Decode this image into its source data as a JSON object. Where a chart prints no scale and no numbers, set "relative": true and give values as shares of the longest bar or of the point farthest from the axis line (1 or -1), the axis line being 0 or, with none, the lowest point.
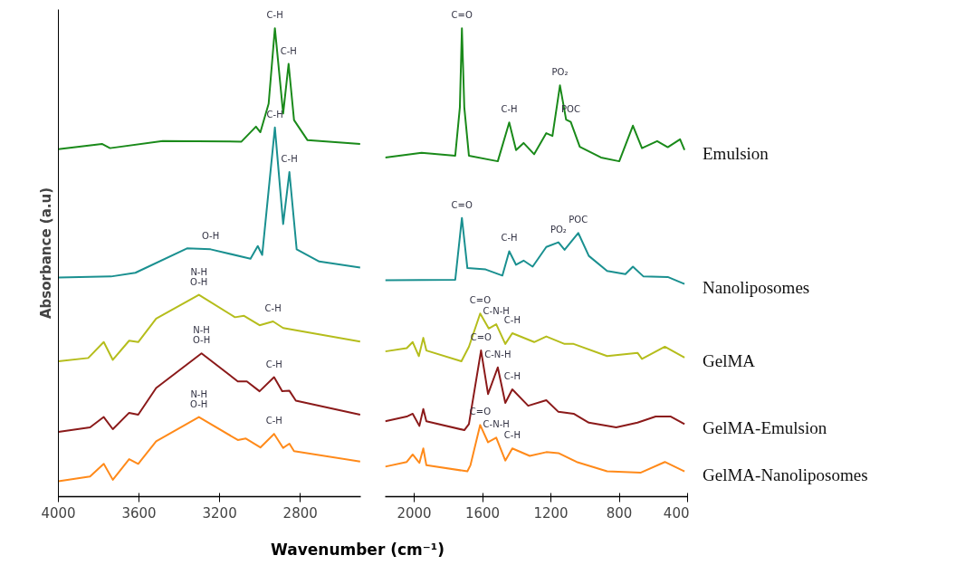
{
  "chart_data": [
    {
      "type": "line",
      "relative": true,
      "ylabel": "Absorbance (a.u)",
      "xlim": [
        4000,
        2500
      ],
      "xticks": [
        4000,
        3600,
        3200,
        2800
      ],
      "series": [
        {
          "color": "#1a8a1a",
          "x": [
            4000,
            3784,
            3744,
            3483,
            3092,
            3020,
            2998,
            2957,
            2926,
            2885,
            2858,
            2831,
            2764,
            2503
          ],
          "values": [
            0.742,
            0.753,
            0.744,
            0.759,
            0.758,
            0.79,
            0.778,
            0.839,
            1,
            0.818,
            0.924,
            0.804,
            0.761,
            0.753
          ]
        },
        {
          "color": "#1a9090",
          "x": [
            4000,
            3739,
            3618,
            3362,
            3245,
            3047,
            3011,
            2989,
            2926,
            2885,
            2854,
            2818,
            2706,
            2503
          ],
          "values": [
            0.468,
            0.47,
            0.478,
            0.53,
            0.528,
            0.508,
            0.535,
            0.516,
            0.788,
            0.582,
            0.693,
            0.528,
            0.502,
            0.489
          ]
        },
        {
          "color": "#b5bd1c",
          "x": [
            4000,
            3852,
            3775,
            3730,
            3649,
            3604,
            3515,
            3303,
            3124,
            3079,
            3002,
            2935,
            2885,
            2503
          ],
          "values": [
            0.289,
            0.296,
            0.33,
            0.292,
            0.333,
            0.33,
            0.38,
            0.431,
            0.383,
            0.386,
            0.366,
            0.374,
            0.36,
            0.331
          ]
        },
        {
          "color": "#8b1a1a",
          "x": [
            4000,
            3843,
            3775,
            3730,
            3649,
            3604,
            3515,
            3290,
            3110,
            3065,
            3002,
            2930,
            2890,
            2854,
            2822,
            2503
          ],
          "values": [
            0.138,
            0.148,
            0.17,
            0.144,
            0.179,
            0.175,
            0.232,
            0.306,
            0.246,
            0.246,
            0.225,
            0.255,
            0.225,
            0.226,
            0.205,
            0.175
          ]
        },
        {
          "color": "#ff8a1a",
          "x": [
            4000,
            3843,
            3775,
            3730,
            3649,
            3604,
            3515,
            3303,
            3110,
            3070,
            2998,
            2930,
            2885,
            2854,
            2831,
            2503
          ],
          "values": [
            0.033,
            0.043,
            0.07,
            0.036,
            0.08,
            0.07,
            0.118,
            0.17,
            0.121,
            0.124,
            0.105,
            0.134,
            0.104,
            0.113,
            0.097,
            0.075
          ]
        }
      ],
      "annotations": [
        {
          "text": "C-H",
          "x": 2926,
          "y": 1
        },
        {
          "text": "C-H",
          "x": 2858,
          "y": 0.924
        },
        {
          "text": "O-H",
          "x": 3245,
          "y": 0.528
        },
        {
          "text": "C-H",
          "x": 2926,
          "y": 0.788
        },
        {
          "text": "C-H",
          "x": 2854,
          "y": 0.693
        },
        {
          "text": "N-H\nO-H",
          "x": 3303,
          "y": 0.431
        },
        {
          "text": "C-H",
          "x": 2935,
          "y": 0.374
        },
        {
          "text": "N-H\nO-H",
          "x": 3290,
          "y": 0.306
        },
        {
          "text": "C-H",
          "x": 2930,
          "y": 0.255
        },
        {
          "text": "N-H\nO-H",
          "x": 3303,
          "y": 0.17
        },
        {
          "text": "C-H",
          "x": 2930,
          "y": 0.134
        }
      ]
    },
    {
      "type": "line",
      "relative": true,
      "xlabel": "Wavenumber (cm⁻¹)",
      "xlim": [
        2170,
        400
      ],
      "xticks": [
        2000,
        1600,
        1200,
        800,
        400
      ],
      "series": [
        {
          "name": "Emulsion",
          "color": "#1a8a1a",
          "x": [
            2170,
            1957,
            1760,
            1733,
            1721,
            1707,
            1680,
            1511,
            1444,
            1404,
            1360,
            1298,
            1227,
            1191,
            1147,
            1111,
            1084,
            1031,
            907,
            800,
            720,
            667,
            578,
            516,
            444,
            418
          ],
          "values": [
            0.724,
            0.734,
            0.728,
            0.831,
            1,
            0.831,
            0.728,
            0.716,
            0.799,
            0.74,
            0.755,
            0.731,
            0.776,
            0.77,
            0.878,
            0.805,
            0.8,
            0.747,
            0.724,
            0.716,
            0.792,
            0.744,
            0.759,
            0.746,
            0.763,
            0.74
          ]
        },
        {
          "name": "Nanoliposomes",
          "color": "#1a9090",
          "x": [
            2170,
            1760,
            1721,
            1689,
            1582,
            1484,
            1444,
            1404,
            1360,
            1307,
            1227,
            1156,
            1120,
            1040,
            978,
            871,
            764,
            720,
            658,
            516,
            418
          ],
          "values": [
            0.462,
            0.463,
            0.595,
            0.488,
            0.485,
            0.472,
            0.524,
            0.495,
            0.504,
            0.491,
            0.533,
            0.543,
            0.527,
            0.563,
            0.514,
            0.482,
            0.475,
            0.491,
            0.47,
            0.469,
            0.454
          ]
        },
        {
          "name": "GelMA",
          "color": "#b5bd1c",
          "x": [
            2170,
            2044,
            2009,
            1973,
            1947,
            1929,
            1724,
            1680,
            1614,
            1564,
            1520,
            1467,
            1426,
            1298,
            1227,
            1120,
            1067,
            871,
            693,
            667,
            533,
            418
          ],
          "values": [
            0.31,
            0.317,
            0.33,
            0.3,
            0.339,
            0.312,
            0.289,
            0.32,
            0.391,
            0.359,
            0.368,
            0.326,
            0.349,
            0.33,
            0.342,
            0.326,
            0.326,
            0.3,
            0.307,
            0.294,
            0.32,
            0.297
          ]
        },
        {
          "name": "GelMA-Emulsion",
          "color": "#8b1a1a",
          "x": [
            2170,
            2044,
            2009,
            1970,
            1947,
            1929,
            1707,
            1680,
            1609,
            1568,
            1511,
            1467,
            1426,
            1333,
            1227,
            1156,
            1067,
            978,
            818,
            693,
            587,
            498,
            418
          ],
          "values": [
            0.161,
            0.171,
            0.177,
            0.151,
            0.187,
            0.161,
            0.142,
            0.155,
            0.312,
            0.219,
            0.276,
            0.2,
            0.229,
            0.194,
            0.206,
            0.181,
            0.177,
            0.158,
            0.148,
            0.158,
            0.171,
            0.171,
            0.155
          ]
        },
        {
          "name": "GelMA-Nanoliposomes",
          "color": "#ff8a1a",
          "x": [
            2170,
            2044,
            2009,
            1970,
            1947,
            1929,
            1689,
            1671,
            1614,
            1568,
            1520,
            1467,
            1426,
            1324,
            1227,
            1156,
            1049,
            871,
            676,
            533,
            418
          ],
          "values": [
            0.064,
            0.074,
            0.09,
            0.072,
            0.103,
            0.067,
            0.054,
            0.067,
            0.153,
            0.116,
            0.126,
            0.077,
            0.103,
            0.087,
            0.095,
            0.093,
            0.074,
            0.054,
            0.051,
            0.074,
            0.054
          ]
        }
      ],
      "annotations": [
        {
          "text": "C=O",
          "x": 1721,
          "y": 1
        },
        {
          "text": "C-H",
          "x": 1444,
          "y": 0.799
        },
        {
          "text": "PO₂",
          "x": 1147,
          "y": 0.878
        },
        {
          "text": "POC",
          "x": 1084,
          "y": 0.8
        },
        {
          "text": "C=O",
          "x": 1721,
          "y": 0.595
        },
        {
          "text": "C-H",
          "x": 1444,
          "y": 0.524
        },
        {
          "text": "PO₂",
          "x": 1156,
          "y": 0.543
        },
        {
          "text": "POC",
          "x": 1040,
          "y": 0.563
        },
        {
          "text": "C=O",
          "x": 1614,
          "y": 0.391
        },
        {
          "text": "C-N-H",
          "x": 1520,
          "y": 0.368
        },
        {
          "text": "C-H",
          "x": 1426,
          "y": 0.349
        },
        {
          "text": "C=O",
          "x": 1609,
          "y": 0.312
        },
        {
          "text": "C-N-H",
          "x": 1511,
          "y": 0.276
        },
        {
          "text": "C-H",
          "x": 1426,
          "y": 0.229
        },
        {
          "text": "C=O",
          "x": 1614,
          "y": 0.153
        },
        {
          "text": "C-N-H",
          "x": 1520,
          "y": 0.126
        },
        {
          "text": "C-H",
          "x": 1426,
          "y": 0.103
        }
      ]
    }
  ]
}
